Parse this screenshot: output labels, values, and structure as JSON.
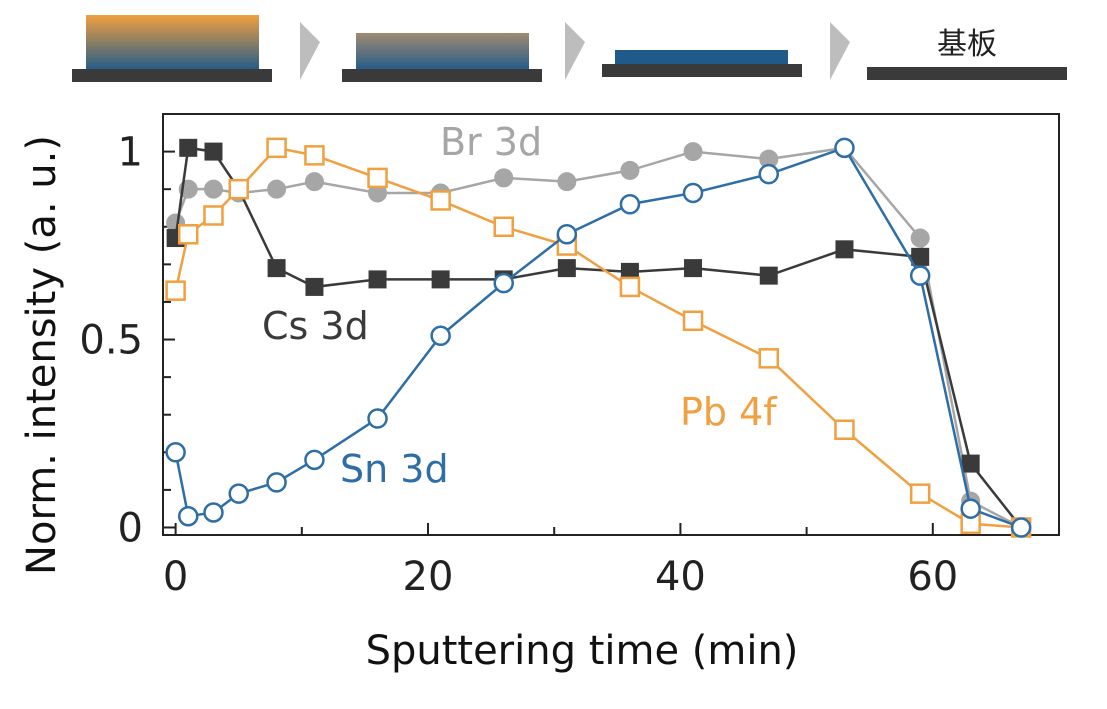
{
  "schematic": {
    "substrate_label": "基板",
    "colors": {
      "top": "#f0a040",
      "bottom": "#1f5a8a",
      "substrate": "#3a3a3a",
      "arrow": "#bdbdbd"
    }
  },
  "chart_data": {
    "type": "line",
    "title": "",
    "xlabel": "Sputtering time (min)",
    "ylabel": "Norm. intensity (a. u.)",
    "xlim": [
      -1,
      70
    ],
    "ylim": [
      -0.02,
      1.1
    ],
    "xticks": [
      0,
      20,
      40,
      60
    ],
    "xtick_labels": [
      "0",
      "20",
      "40",
      "60"
    ],
    "yticks": [
      0,
      0.5,
      1
    ],
    "ytick_labels": [
      "0",
      "0.5",
      "1"
    ],
    "grid": false,
    "legend": "inline labels",
    "series": [
      {
        "name": "Br 3d",
        "color": "#a6a6a6",
        "marker": "filled-circle",
        "x": [
          0,
          1,
          3,
          5,
          8,
          11,
          16,
          21,
          26,
          31,
          36,
          41,
          47,
          53,
          59,
          63,
          67
        ],
        "y": [
          0.81,
          0.9,
          0.9,
          0.89,
          0.9,
          0.92,
          0.89,
          0.89,
          0.93,
          0.92,
          0.95,
          1.0,
          0.98,
          1.01,
          0.77,
          0.07,
          0.0
        ]
      },
      {
        "name": "Cs 3d",
        "color": "#3a3a3a",
        "marker": "filled-square",
        "x": [
          0,
          1,
          3,
          5,
          8,
          11,
          16,
          21,
          26,
          31,
          36,
          41,
          47,
          53,
          59,
          63,
          67
        ],
        "y": [
          0.77,
          1.01,
          1.0,
          0.9,
          0.69,
          0.64,
          0.66,
          0.66,
          0.66,
          0.69,
          0.68,
          0.69,
          0.67,
          0.74,
          0.72,
          0.17,
          0.0
        ]
      },
      {
        "name": "Pb 4f",
        "color": "#f0a040",
        "marker": "open-square",
        "x": [
          0,
          1,
          3,
          5,
          8,
          11,
          16,
          21,
          26,
          31,
          36,
          41,
          47,
          53,
          59,
          63,
          67
        ],
        "y": [
          0.63,
          0.78,
          0.83,
          0.9,
          1.01,
          0.99,
          0.93,
          0.87,
          0.8,
          0.75,
          0.64,
          0.55,
          0.45,
          0.26,
          0.09,
          0.01,
          0.0
        ]
      },
      {
        "name": "Sn 3d",
        "color": "#2e6ea6",
        "marker": "open-circle",
        "x": [
          0,
          1,
          3,
          5,
          8,
          11,
          16,
          21,
          26,
          31,
          36,
          41,
          47,
          53,
          59,
          63,
          67
        ],
        "y": [
          0.2,
          0.03,
          0.04,
          0.09,
          0.12,
          0.18,
          0.29,
          0.51,
          0.65,
          0.78,
          0.86,
          0.89,
          0.94,
          1.01,
          0.67,
          0.05,
          0.0
        ]
      }
    ]
  }
}
